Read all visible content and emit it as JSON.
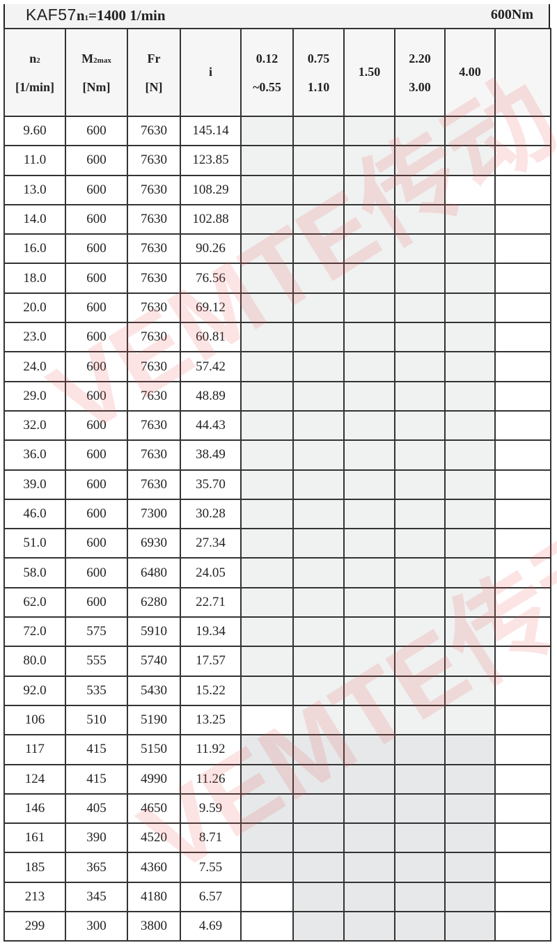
{
  "title": {
    "model": "KAF57",
    "n1_label": "n",
    "n1_sub": "1",
    "n1_value": "=1400 1/min",
    "torque": "600Nm"
  },
  "headers": [
    {
      "line1": "n",
      "sub": "2",
      "line2": "[1/min]"
    },
    {
      "line1": "M",
      "sub": "2max",
      "line2": "[Nm]"
    },
    {
      "line1": "Fr",
      "sub": "",
      "line2": "[N]"
    },
    {
      "line1": "i",
      "sub": "",
      "line2": ""
    },
    {
      "line1": "0.12",
      "sub": "",
      "line2": "~0.55"
    },
    {
      "line1": "0.75",
      "sub": "",
      "line2": "1.10"
    },
    {
      "line1": "1.50",
      "sub": "",
      "line2": ""
    },
    {
      "line1": "2.20",
      "sub": "",
      "line2": "3.00"
    },
    {
      "line1": "4.00",
      "sub": "",
      "line2": ""
    },
    {
      "line1": "",
      "sub": "",
      "line2": ""
    }
  ],
  "rows": [
    {
      "n2": "9.60",
      "m2": "600",
      "fr": "7630",
      "i": "145.14",
      "shade": [
        1,
        1,
        1,
        1,
        1
      ]
    },
    {
      "n2": "11.0",
      "m2": "600",
      "fr": "7630",
      "i": "123.85",
      "shade": [
        1,
        1,
        1,
        1,
        1
      ]
    },
    {
      "n2": "13.0",
      "m2": "600",
      "fr": "7630",
      "i": "108.29",
      "shade": [
        1,
        1,
        1,
        1,
        0
      ]
    },
    {
      "n2": "14.0",
      "m2": "600",
      "fr": "7630",
      "i": "102.88",
      "shade": [
        1,
        1,
        1,
        1,
        1
      ]
    },
    {
      "n2": "16.0",
      "m2": "600",
      "fr": "7630",
      "i": "90.26",
      "shade": [
        1,
        1,
        1,
        1,
        1
      ]
    },
    {
      "n2": "18.0",
      "m2": "600",
      "fr": "7630",
      "i": "76.56",
      "shade": [
        1,
        1,
        1,
        1,
        1
      ]
    },
    {
      "n2": "20.0",
      "m2": "600",
      "fr": "7630",
      "i": "69.12",
      "shade": [
        1,
        1,
        1,
        1,
        1
      ]
    },
    {
      "n2": "23.0",
      "m2": "600",
      "fr": "7630",
      "i": "60.81",
      "shade": [
        1,
        1,
        1,
        1,
        1
      ]
    },
    {
      "n2": "24.0",
      "m2": "600",
      "fr": "7630",
      "i": "57.42",
      "shade": [
        1,
        1,
        1,
        1,
        1
      ]
    },
    {
      "n2": "29.0",
      "m2": "600",
      "fr": "7630",
      "i": "48.89",
      "shade": [
        1,
        1,
        1,
        1,
        1
      ]
    },
    {
      "n2": "32.0",
      "m2": "600",
      "fr": "7630",
      "i": "44.43",
      "shade": [
        1,
        1,
        1,
        1,
        1
      ]
    },
    {
      "n2": "36.0",
      "m2": "600",
      "fr": "7630",
      "i": "38.49",
      "shade": [
        1,
        1,
        1,
        1,
        1
      ]
    },
    {
      "n2": "39.0",
      "m2": "600",
      "fr": "7630",
      "i": "35.70",
      "shade": [
        1,
        1,
        1,
        1,
        1
      ]
    },
    {
      "n2": "46.0",
      "m2": "600",
      "fr": "7300",
      "i": "30.28",
      "shade": [
        1,
        1,
        1,
        1,
        1
      ]
    },
    {
      "n2": "51.0",
      "m2": "600",
      "fr": "6930",
      "i": "27.34",
      "shade": [
        1,
        1,
        1,
        1,
        1
      ]
    },
    {
      "n2": "58.0",
      "m2": "600",
      "fr": "6480",
      "i": "24.05",
      "shade": [
        1,
        1,
        1,
        1,
        1
      ]
    },
    {
      "n2": "62.0",
      "m2": "600",
      "fr": "6280",
      "i": "22.71",
      "shade": [
        1,
        1,
        1,
        1,
        1
      ]
    },
    {
      "n2": "72.0",
      "m2": "575",
      "fr": "5910",
      "i": "19.34",
      "shade": [
        1,
        1,
        1,
        1,
        1
      ]
    },
    {
      "n2": "80.0",
      "m2": "555",
      "fr": "5740",
      "i": "17.57",
      "shade": [
        1,
        1,
        1,
        1,
        1
      ]
    },
    {
      "n2": "92.0",
      "m2": "535",
      "fr": "5430",
      "i": "15.22",
      "shade": [
        1,
        1,
        1,
        1,
        1
      ]
    },
    {
      "n2": "106",
      "m2": "510",
      "fr": "5190",
      "i": "13.25",
      "shade": [
        0,
        1,
        1,
        1,
        1
      ]
    },
    {
      "n2": "117",
      "m2": "415",
      "fr": "5150",
      "i": "11.92",
      "shade": [
        2,
        2,
        2,
        2,
        2
      ]
    },
    {
      "n2": "124",
      "m2": "415",
      "fr": "4990",
      "i": "11.26",
      "shade": [
        2,
        2,
        2,
        2,
        2
      ]
    },
    {
      "n2": "146",
      "m2": "405",
      "fr": "4650",
      "i": "9.59",
      "shade": [
        2,
        2,
        2,
        2,
        2
      ]
    },
    {
      "n2": "161",
      "m2": "390",
      "fr": "4520",
      "i": "8.71",
      "shade": [
        2,
        2,
        2,
        2,
        2
      ]
    },
    {
      "n2": "185",
      "m2": "365",
      "fr": "4360",
      "i": "7.55",
      "shade": [
        2,
        2,
        2,
        2,
        2
      ]
    },
    {
      "n2": "213",
      "m2": "345",
      "fr": "4180",
      "i": "6.57",
      "shade": [
        0,
        2,
        2,
        2,
        2
      ]
    },
    {
      "n2": "299",
      "m2": "300",
      "fr": "3800",
      "i": "4.69",
      "shade": [
        0,
        2,
        2,
        2,
        2
      ]
    }
  ],
  "colors": {
    "shade_light": "#f0f1f1",
    "shade_dark": "#e6e8e9",
    "watermark": "#eb5a5a"
  },
  "watermark": "VEMTE传动"
}
